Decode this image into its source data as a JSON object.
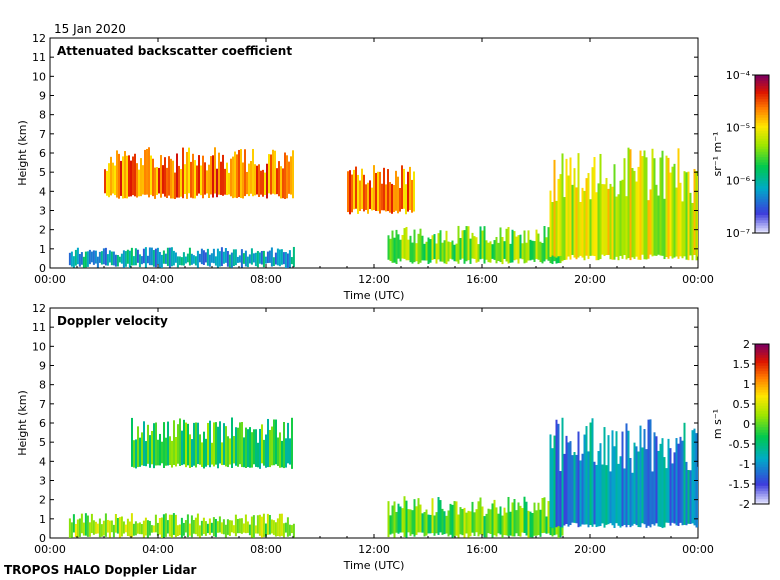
{
  "date_label": "15 Jan 2020",
  "footer_label": "TROPOS HALO Doppler Lidar",
  "chart_data": [
    {
      "type": "heatmap",
      "title": "Attenuated backscatter coefficient",
      "xlabel": "Time (UTC)",
      "ylabel": "Height (km)",
      "xlim": [
        0,
        24
      ],
      "ylim": [
        0,
        12
      ],
      "x_ticks": [
        "00:00",
        "04:00",
        "08:00",
        "12:00",
        "16:00",
        "20:00",
        "00:00"
      ],
      "x_tick_hours": [
        0,
        4,
        8,
        12,
        16,
        20,
        24
      ],
      "y_ticks": [
        0,
        1,
        2,
        3,
        4,
        5,
        6,
        7,
        8,
        9,
        10,
        11,
        12
      ],
      "colorbar": {
        "scale": "log",
        "range": [
          1e-07,
          0.0001
        ],
        "unit_label": "sr⁻¹ m⁻¹",
        "ticks": [
          {
            "label": "10⁻⁴",
            "value": -4
          },
          {
            "label": "10⁻⁵",
            "value": -5
          },
          {
            "label": "10⁻⁶",
            "value": -6
          },
          {
            "label": "10⁻⁷",
            "value": -7
          }
        ]
      },
      "features": [
        {
          "name": "boundary-layer aerosol",
          "t0": 0.7,
          "t1": 9.0,
          "h0": 0.0,
          "h1": 1.1,
          "value": 0.28
        },
        {
          "name": "mid-level cloud layer",
          "t0": 2.0,
          "t1": 9.0,
          "h0": 3.6,
          "h1": 6.3,
          "value": 0.8
        },
        {
          "name": "scattered cloud",
          "t0": 11.0,
          "t1": 13.5,
          "h0": 2.8,
          "h1": 5.4,
          "value": 0.78
        },
        {
          "name": "low cloud band",
          "t0": 12.5,
          "t1": 19.0,
          "h0": 0.2,
          "h1": 2.2,
          "value": 0.52
        },
        {
          "name": "evening cloud deck",
          "t0": 18.5,
          "t1": 24.0,
          "h0": 0.4,
          "h1": 6.3,
          "value": 0.62
        }
      ]
    },
    {
      "type": "heatmap",
      "title": "Doppler velocity",
      "xlabel": "Time (UTC)",
      "ylabel": "Height (km)",
      "xlim": [
        0,
        24
      ],
      "ylim": [
        0,
        12
      ],
      "x_ticks": [
        "00:00",
        "04:00",
        "08:00",
        "12:00",
        "16:00",
        "20:00",
        "00:00"
      ],
      "x_tick_hours": [
        0,
        4,
        8,
        12,
        16,
        20,
        24
      ],
      "y_ticks": [
        0,
        1,
        2,
        3,
        4,
        5,
        6,
        7,
        8,
        9,
        10,
        11,
        12
      ],
      "colorbar": {
        "scale": "linear",
        "range": [
          -2,
          2
        ],
        "unit_label": "m s⁻¹",
        "ticks": [
          {
            "label": "2",
            "value": 2
          },
          {
            "label": "1.5",
            "value": 1.5
          },
          {
            "label": "1",
            "value": 1
          },
          {
            "label": "0.5",
            "value": 0.5
          },
          {
            "label": "0",
            "value": 0
          },
          {
            "label": "-0.5",
            "value": -0.5
          },
          {
            "label": "-1",
            "value": -1
          },
          {
            "label": "-1.5",
            "value": -1.5
          },
          {
            "label": "-2",
            "value": -2
          }
        ]
      },
      "features": [
        {
          "name": "boundary-layer turbulence",
          "t0": 0.7,
          "t1": 9.0,
          "h0": 0.0,
          "h1": 1.3,
          "value": 0.55
        },
        {
          "name": "mid-level cloud layer",
          "t0": 3.0,
          "t1": 9.0,
          "h0": 3.6,
          "h1": 6.3,
          "value": 0.45
        },
        {
          "name": "low cloud band",
          "t0": 12.5,
          "t1": 19.0,
          "h0": 0.0,
          "h1": 2.2,
          "value": 0.5
        },
        {
          "name": "evening cloud deck",
          "t0": 18.5,
          "t1": 24.0,
          "h0": 0.5,
          "h1": 6.3,
          "value": 0.25
        }
      ]
    }
  ]
}
